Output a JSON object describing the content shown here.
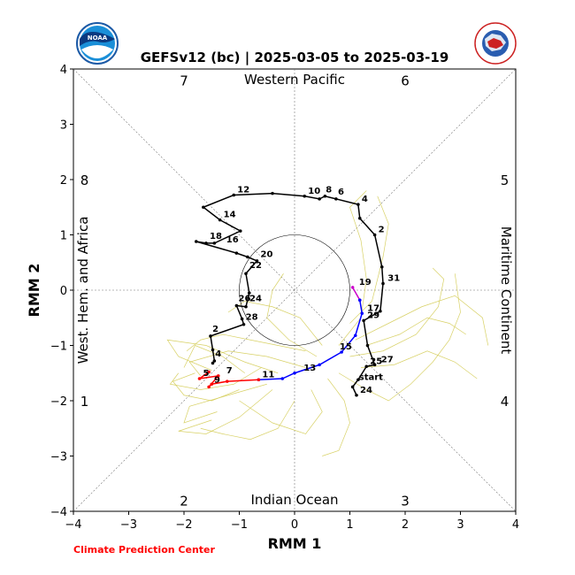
{
  "page_title": "GEFSv12 (bc) | 2025-03-05 to 2025-03-19",
  "logos": {
    "left_text": "NOAA",
    "right_text": "NATIONAL WEATHER SERVICE"
  },
  "credit": "Climate Prediction Center",
  "chart_data": {
    "type": "line",
    "title": "GEFSv12 (bc) | 2025-03-05 to 2025-03-19",
    "xlabel": "RMM 1",
    "ylabel": "RMM 2",
    "xlim": [
      -4,
      4
    ],
    "ylim": [
      -4,
      4
    ],
    "xticks": [
      -4,
      -3,
      -2,
      -1,
      0,
      1,
      2,
      3,
      4
    ],
    "yticks": [
      -4,
      -3,
      -2,
      -1,
      0,
      1,
      2,
      3,
      4
    ],
    "xtick_labels": [
      "−4",
      "−3",
      "−2",
      "−1",
      "0",
      "1",
      "2",
      "3",
      "4"
    ],
    "ytick_labels": [
      "−4",
      "−3",
      "−2",
      "−1",
      "0",
      "1",
      "2",
      "3",
      "4"
    ],
    "regions": {
      "top": "Western Pacific",
      "bottom": "Indian Ocean",
      "left": "West. Hem. and Africa",
      "right": "Maritime Continent"
    },
    "phase_labels": [
      {
        "text": "7",
        "x": -2,
        "y": 3.8
      },
      {
        "text": "6",
        "x": 2,
        "y": 3.8
      },
      {
        "text": "8",
        "x": -3.8,
        "y": 2
      },
      {
        "text": "5",
        "x": 3.8,
        "y": 2
      },
      {
        "text": "1",
        "x": -3.8,
        "y": -2
      },
      {
        "text": "4",
        "x": 3.8,
        "y": -2
      },
      {
        "text": "2",
        "x": -2,
        "y": -3.8
      },
      {
        "text": "3",
        "x": 2,
        "y": -3.8
      }
    ],
    "unit_circle_radius": 1,
    "colors": {
      "observed": "#000000",
      "forecast_week1": "#0000ff",
      "forecast_week2": "#ff0000",
      "transition": "#cc00cc",
      "members": "#d4cc55",
      "credit": "#ff0000"
    },
    "observed": {
      "points": [
        {
          "x": 1.12,
          "y": -1.9
        },
        {
          "x": 1.05,
          "y": -1.75
        },
        {
          "x": 1.15,
          "y": -1.62
        },
        {
          "x": 1.3,
          "y": -1.38
        },
        {
          "x": 1.45,
          "y": -1.35
        },
        {
          "x": 1.32,
          "y": -1.0
        },
        {
          "x": 1.25,
          "y": -0.55
        },
        {
          "x": 1.55,
          "y": -0.38
        },
        {
          "x": 1.6,
          "y": 0.12
        },
        {
          "x": 1.58,
          "y": 0.42
        },
        {
          "x": 1.45,
          "y": 1.0
        },
        {
          "x": 1.18,
          "y": 1.3
        },
        {
          "x": 1.15,
          "y": 1.55
        },
        {
          "x": 0.75,
          "y": 1.65
        },
        {
          "x": 0.55,
          "y": 1.7
        },
        {
          "x": 0.45,
          "y": 1.65
        },
        {
          "x": 0.18,
          "y": 1.7
        },
        {
          "x": -0.4,
          "y": 1.75
        },
        {
          "x": -1.1,
          "y": 1.72
        },
        {
          "x": -1.65,
          "y": 1.5
        },
        {
          "x": -1.35,
          "y": 1.27
        },
        {
          "x": -0.98,
          "y": 1.07
        },
        {
          "x": -1.45,
          "y": 0.85
        },
        {
          "x": -1.6,
          "y": 0.85
        },
        {
          "x": -1.78,
          "y": 0.88
        },
        {
          "x": -1.05,
          "y": 0.67
        },
        {
          "x": -0.85,
          "y": 0.6
        },
        {
          "x": -0.68,
          "y": 0.53
        },
        {
          "x": -0.88,
          "y": 0.3
        },
        {
          "x": -0.82,
          "y": -0.05
        },
        {
          "x": -0.88,
          "y": -0.3
        },
        {
          "x": -1.05,
          "y": -0.28
        },
        {
          "x": -0.95,
          "y": -0.52
        },
        {
          "x": -0.92,
          "y": -0.62
        },
        {
          "x": -1.52,
          "y": -0.83
        },
        {
          "x": -1.48,
          "y": -1.08
        },
        {
          "x": -1.45,
          "y": -1.28
        },
        {
          "x": -1.48,
          "y": -1.32
        }
      ],
      "labels": [
        {
          "text": "24",
          "x": 1.12,
          "y": -1.9
        },
        {
          "text": "start",
          "x": 1.1,
          "y": -1.67
        },
        {
          "text": "25",
          "x": 1.3,
          "y": -1.38
        },
        {
          "text": "27",
          "x": 1.5,
          "y": -1.35
        },
        {
          "text": "29",
          "x": 1.25,
          "y": -0.55
        },
        {
          "text": "31",
          "x": 1.62,
          "y": 0.12
        },
        {
          "text": "2",
          "x": 1.45,
          "y": 1.0
        },
        {
          "text": "4",
          "x": 1.15,
          "y": 1.55
        },
        {
          "text": "6",
          "x": 0.72,
          "y": 1.68
        },
        {
          "text": "8",
          "x": 0.5,
          "y": 1.72
        },
        {
          "text": "10",
          "x": 0.18,
          "y": 1.7
        },
        {
          "text": "12",
          "x": -1.1,
          "y": 1.72
        },
        {
          "text": "14",
          "x": -1.35,
          "y": 1.27
        },
        {
          "text": "16",
          "x": -1.3,
          "y": 0.82
        },
        {
          "text": "18",
          "x": -1.6,
          "y": 0.88
        },
        {
          "text": "20",
          "x": -0.68,
          "y": 0.55
        },
        {
          "text": "22",
          "x": -0.88,
          "y": 0.35
        },
        {
          "text": "24",
          "x": -0.88,
          "y": -0.25
        },
        {
          "text": "26",
          "x": -1.08,
          "y": -0.25
        },
        {
          "text": "28",
          "x": -0.95,
          "y": -0.58
        },
        {
          "text": "2",
          "x": -1.55,
          "y": -0.8
        },
        {
          "text": "4",
          "x": -1.5,
          "y": -1.25
        }
      ]
    },
    "transition": [
      {
        "x": 1.05,
        "y": 0.05
      },
      {
        "x": 1.18,
        "y": -0.18
      }
    ],
    "forecast_week1": [
      {
        "x": 1.18,
        "y": -0.18
      },
      {
        "x": 1.22,
        "y": -0.42
      },
      {
        "x": 1.1,
        "y": -0.82
      },
      {
        "x": 0.85,
        "y": -1.12
      },
      {
        "x": 0.45,
        "y": -1.35
      },
      {
        "x": 0.0,
        "y": -1.5
      },
      {
        "x": -0.22,
        "y": -1.6
      },
      {
        "x": -0.65,
        "y": -1.62
      }
    ],
    "forecast_week1_labels": [
      {
        "text": "19",
        "x": 1.1,
        "y": 0.05
      },
      {
        "text": "17",
        "x": 1.25,
        "y": -0.42
      },
      {
        "text": "15",
        "x": 0.75,
        "y": -1.12
      },
      {
        "text": "13",
        "x": 0.1,
        "y": -1.5
      },
      {
        "text": "11",
        "x": -0.65,
        "y": -1.62
      }
    ],
    "forecast_week2": [
      {
        "x": -0.65,
        "y": -1.62
      },
      {
        "x": -1.22,
        "y": -1.65
      },
      {
        "x": -1.5,
        "y": -1.7
      },
      {
        "x": -1.55,
        "y": -1.75
      },
      {
        "x": -1.38,
        "y": -1.55
      },
      {
        "x": -1.72,
        "y": -1.6
      },
      {
        "x": -1.55,
        "y": -1.48
      }
    ],
    "forecast_week2_labels": [
      {
        "text": "9",
        "x": -1.52,
        "y": -1.72
      },
      {
        "text": "7",
        "x": -1.3,
        "y": -1.55
      },
      {
        "text": "5",
        "x": -1.72,
        "y": -1.6
      }
    ],
    "members": [
      [
        [
          -0.3,
          -1.5
        ],
        [
          -0.9,
          -1.3
        ],
        [
          -1.6,
          -1.0
        ],
        [
          -2.3,
          -0.9
        ],
        [
          -2.1,
          -1.2
        ],
        [
          -1.5,
          -1.45
        ]
      ],
      [
        [
          0.2,
          -1.4
        ],
        [
          -0.5,
          -1.2
        ],
        [
          -1.2,
          -1.1
        ],
        [
          -1.9,
          -1.3
        ],
        [
          -1.7,
          -1.55
        ]
      ],
      [
        [
          -0.5,
          -1.7
        ],
        [
          -1.2,
          -1.9
        ],
        [
          -1.9,
          -2.1
        ],
        [
          -2.0,
          -2.4
        ],
        [
          -1.4,
          -2.2
        ]
      ],
      [
        [
          -0.4,
          -1.8
        ],
        [
          -1.0,
          -2.3
        ],
        [
          -1.6,
          -2.6
        ],
        [
          -2.1,
          -2.55
        ],
        [
          -1.5,
          -2.35
        ]
      ],
      [
        [
          0.3,
          -1.8
        ],
        [
          0.5,
          -2.2
        ],
        [
          0.2,
          -2.6
        ],
        [
          -0.4,
          -2.4
        ],
        [
          -1.0,
          -2.0
        ]
      ],
      [
        [
          0.8,
          -1.5
        ],
        [
          1.3,
          -1.8
        ],
        [
          1.7,
          -2.0
        ],
        [
          2.1,
          -1.7
        ],
        [
          2.5,
          -1.3
        ],
        [
          2.8,
          -0.9
        ],
        [
          3.0,
          -0.4
        ],
        [
          2.9,
          0.3
        ]
      ],
      [
        [
          1.0,
          -1.2
        ],
        [
          1.6,
          -1.1
        ],
        [
          2.2,
          -0.8
        ],
        [
          2.6,
          -0.3
        ],
        [
          2.7,
          0.2
        ],
        [
          2.5,
          0.4
        ]
      ],
      [
        [
          1.1,
          -0.9
        ],
        [
          1.7,
          -0.6
        ],
        [
          2.3,
          -0.3
        ],
        [
          2.9,
          -0.1
        ],
        [
          3.4,
          -0.5
        ],
        [
          3.5,
          -1.0
        ]
      ],
      [
        [
          1.0,
          -0.6
        ],
        [
          1.4,
          -0.2
        ],
        [
          1.6,
          0.6
        ],
        [
          1.7,
          1.2
        ],
        [
          1.5,
          1.7
        ]
      ],
      [
        [
          0.8,
          -1.0
        ],
        [
          1.2,
          -0.5
        ],
        [
          1.3,
          0.2
        ],
        [
          1.2,
          0.9
        ],
        [
          1.0,
          1.5
        ],
        [
          1.3,
          1.8
        ]
      ],
      [
        [
          1.2,
          -1.4
        ],
        [
          1.8,
          -1.35
        ],
        [
          2.4,
          -1.1
        ],
        [
          2.9,
          -1.3
        ],
        [
          3.3,
          -1.6
        ]
      ],
      [
        [
          0.5,
          -1.0
        ],
        [
          0.1,
          -0.5
        ],
        [
          -0.4,
          -0.3
        ],
        [
          -0.9,
          -0.2
        ],
        [
          -1.2,
          -0.4
        ]
      ],
      [
        [
          0.4,
          -1.2
        ],
        [
          -0.1,
          -0.9
        ],
        [
          -0.5,
          -0.5
        ],
        [
          -0.4,
          0.0
        ],
        [
          -0.2,
          0.3
        ]
      ],
      [
        [
          -0.9,
          -1.5
        ],
        [
          -1.3,
          -1.2
        ],
        [
          -1.8,
          -1.0
        ],
        [
          -2.0,
          -1.4
        ]
      ],
      [
        [
          -1.0,
          -1.8
        ],
        [
          -1.5,
          -2.0
        ],
        [
          -2.0,
          -1.9
        ],
        [
          -2.2,
          -1.65
        ],
        [
          -1.8,
          -1.5
        ]
      ],
      [
        [
          0.0,
          -2.0
        ],
        [
          -0.3,
          -2.5
        ],
        [
          -0.8,
          -2.7
        ],
        [
          -1.3,
          -2.6
        ],
        [
          -1.7,
          -2.5
        ]
      ],
      [
        [
          0.6,
          -1.6
        ],
        [
          0.9,
          -2.0
        ],
        [
          1.0,
          -2.4
        ],
        [
          0.8,
          -2.9
        ],
        [
          0.5,
          -3.0
        ]
      ],
      [
        [
          -0.6,
          -1.4
        ],
        [
          -1.1,
          -1.7
        ],
        [
          -1.7,
          -1.8
        ],
        [
          -2.25,
          -1.7
        ],
        [
          -2.1,
          -1.5
        ]
      ],
      [
        [
          1.3,
          -1.0
        ],
        [
          1.9,
          -0.8
        ],
        [
          2.4,
          -0.5
        ],
        [
          2.8,
          -0.6
        ],
        [
          3.1,
          -0.8
        ]
      ],
      [
        [
          0.2,
          -1.1
        ],
        [
          -0.3,
          -1.0
        ],
        [
          -0.8,
          -0.9
        ],
        [
          -1.3,
          -0.8
        ],
        [
          -1.7,
          -0.9
        ],
        [
          -1.95,
          -1.1
        ]
      ]
    ]
  }
}
